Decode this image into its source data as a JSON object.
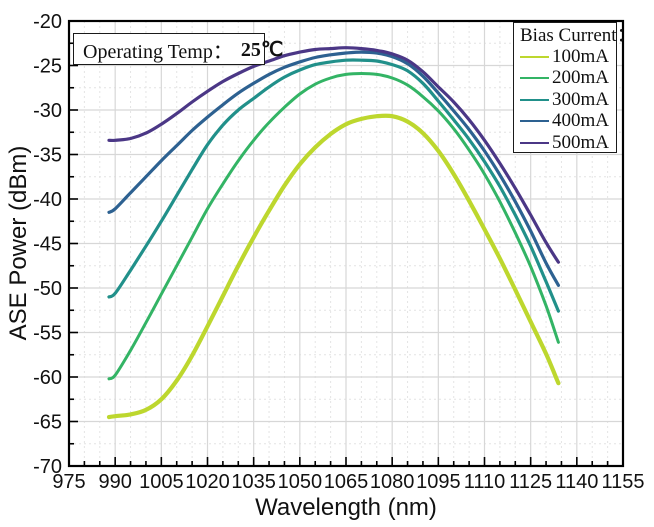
{
  "figure": {
    "background": "#ffffff",
    "frame_color": "#000000",
    "major_grid_color": "#d7d7d7",
    "minor_grid_color": "#e4e4e4"
  },
  "annotation": {
    "label": "Operating Temp：",
    "value": "25℃"
  },
  "legend": {
    "title": "Bias Current：",
    "position": "top-right"
  },
  "chart_data": {
    "type": "line",
    "xlabel": "Wavelength (nm)",
    "ylabel": "ASE Power (dBm)",
    "xlim": [
      975,
      1155
    ],
    "ylim": [
      -70,
      -20
    ],
    "x_ticks": [
      975,
      990,
      1005,
      1020,
      1035,
      1050,
      1065,
      1080,
      1095,
      1110,
      1125,
      1140,
      1155
    ],
    "y_ticks": [
      -20,
      -25,
      -30,
      -35,
      -40,
      -45,
      -50,
      -55,
      -60,
      -65,
      -70
    ],
    "x_minor_step": 5,
    "y_minor_step": 2.5,
    "grid": "major solid + minor dotted",
    "legend_position": "top-right",
    "x": [
      988,
      990,
      995,
      1000,
      1005,
      1010,
      1015,
      1020,
      1025,
      1030,
      1035,
      1040,
      1045,
      1050,
      1055,
      1060,
      1065,
      1070,
      1075,
      1080,
      1085,
      1090,
      1095,
      1100,
      1105,
      1110,
      1115,
      1120,
      1125,
      1130,
      1134
    ],
    "series": [
      {
        "name": "100mA",
        "color": "#bdd72e",
        "line_width": 4.2,
        "values": [
          -64.5,
          -64.4,
          -64.2,
          -63.7,
          -62.5,
          -60.4,
          -57.6,
          -54.3,
          -50.9,
          -47.5,
          -44.3,
          -41.3,
          -38.5,
          -36.1,
          -34.2,
          -32.7,
          -31.6,
          -31.0,
          -30.7,
          -30.7,
          -31.3,
          -32.6,
          -34.6,
          -37.2,
          -40.2,
          -43.4,
          -46.7,
          -50.2,
          -53.8,
          -57.4,
          -60.7
        ]
      },
      {
        "name": "200mA",
        "color": "#33b465",
        "line_width": 3.0,
        "values": [
          -60.2,
          -59.8,
          -57.0,
          -53.9,
          -50.7,
          -47.5,
          -44.3,
          -41.1,
          -38.3,
          -35.7,
          -33.4,
          -31.4,
          -29.7,
          -28.2,
          -27.1,
          -26.4,
          -26.0,
          -25.9,
          -26.0,
          -26.4,
          -27.2,
          -28.5,
          -30.1,
          -32.1,
          -34.5,
          -37.2,
          -40.3,
          -43.8,
          -47.6,
          -52.0,
          -56.1
        ]
      },
      {
        "name": "300mA",
        "color": "#21908a",
        "line_width": 3.2,
        "values": [
          -51.0,
          -50.6,
          -48.0,
          -45.3,
          -42.5,
          -39.6,
          -36.7,
          -33.9,
          -31.7,
          -30.0,
          -28.7,
          -27.4,
          -26.3,
          -25.5,
          -24.9,
          -24.6,
          -24.4,
          -24.4,
          -24.5,
          -24.9,
          -25.6,
          -27.0,
          -29.0,
          -31.1,
          -33.3,
          -35.8,
          -38.6,
          -41.8,
          -45.3,
          -49.3,
          -52.6
        ]
      },
      {
        "name": "400mA",
        "color": "#2d6191",
        "line_width": 3.2,
        "values": [
          -41.5,
          -41.1,
          -39.3,
          -37.5,
          -35.7,
          -34.0,
          -32.3,
          -30.8,
          -29.4,
          -28.1,
          -27.0,
          -26.0,
          -25.2,
          -24.6,
          -24.1,
          -23.8,
          -23.6,
          -23.5,
          -23.6,
          -24.0,
          -24.8,
          -26.2,
          -28.1,
          -30.1,
          -32.2,
          -34.6,
          -37.3,
          -40.3,
          -43.6,
          -47.2,
          -49.7
        ]
      },
      {
        "name": "500mA",
        "color": "#4b3786",
        "line_width": 3.2,
        "values": [
          -33.4,
          -33.4,
          -33.2,
          -32.6,
          -31.6,
          -30.4,
          -29.1,
          -27.9,
          -26.8,
          -25.9,
          -25.1,
          -24.5,
          -23.9,
          -23.5,
          -23.2,
          -23.1,
          -23.0,
          -23.1,
          -23.3,
          -23.7,
          -24.4,
          -25.7,
          -27.4,
          -29.1,
          -31.1,
          -33.4,
          -36.0,
          -38.8,
          -41.8,
          -44.9,
          -47.1
        ]
      }
    ]
  }
}
